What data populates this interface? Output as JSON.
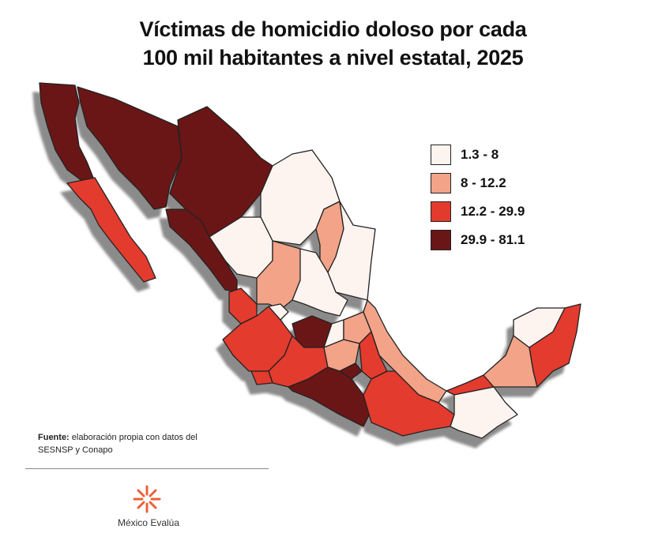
{
  "title_lines": [
    "Víctimas de homicidio doloso por cada",
    "100 mil habitantes a nivel estatal, 2025"
  ],
  "legend": [
    {
      "label": "1.3 - 8",
      "color": "#fdf3ef"
    },
    {
      "label": "8 - 12.2",
      "color": "#f2a388"
    },
    {
      "label": "12.2 - 29.9",
      "color": "#e33a2e"
    },
    {
      "label": "29.9 - 81.1",
      "color": "#6a1616"
    }
  ],
  "source": {
    "label": "Fuente:",
    "text": "elaboración propia con datos del SESNSP y Conapo"
  },
  "logo": "México Evalúa"
}
